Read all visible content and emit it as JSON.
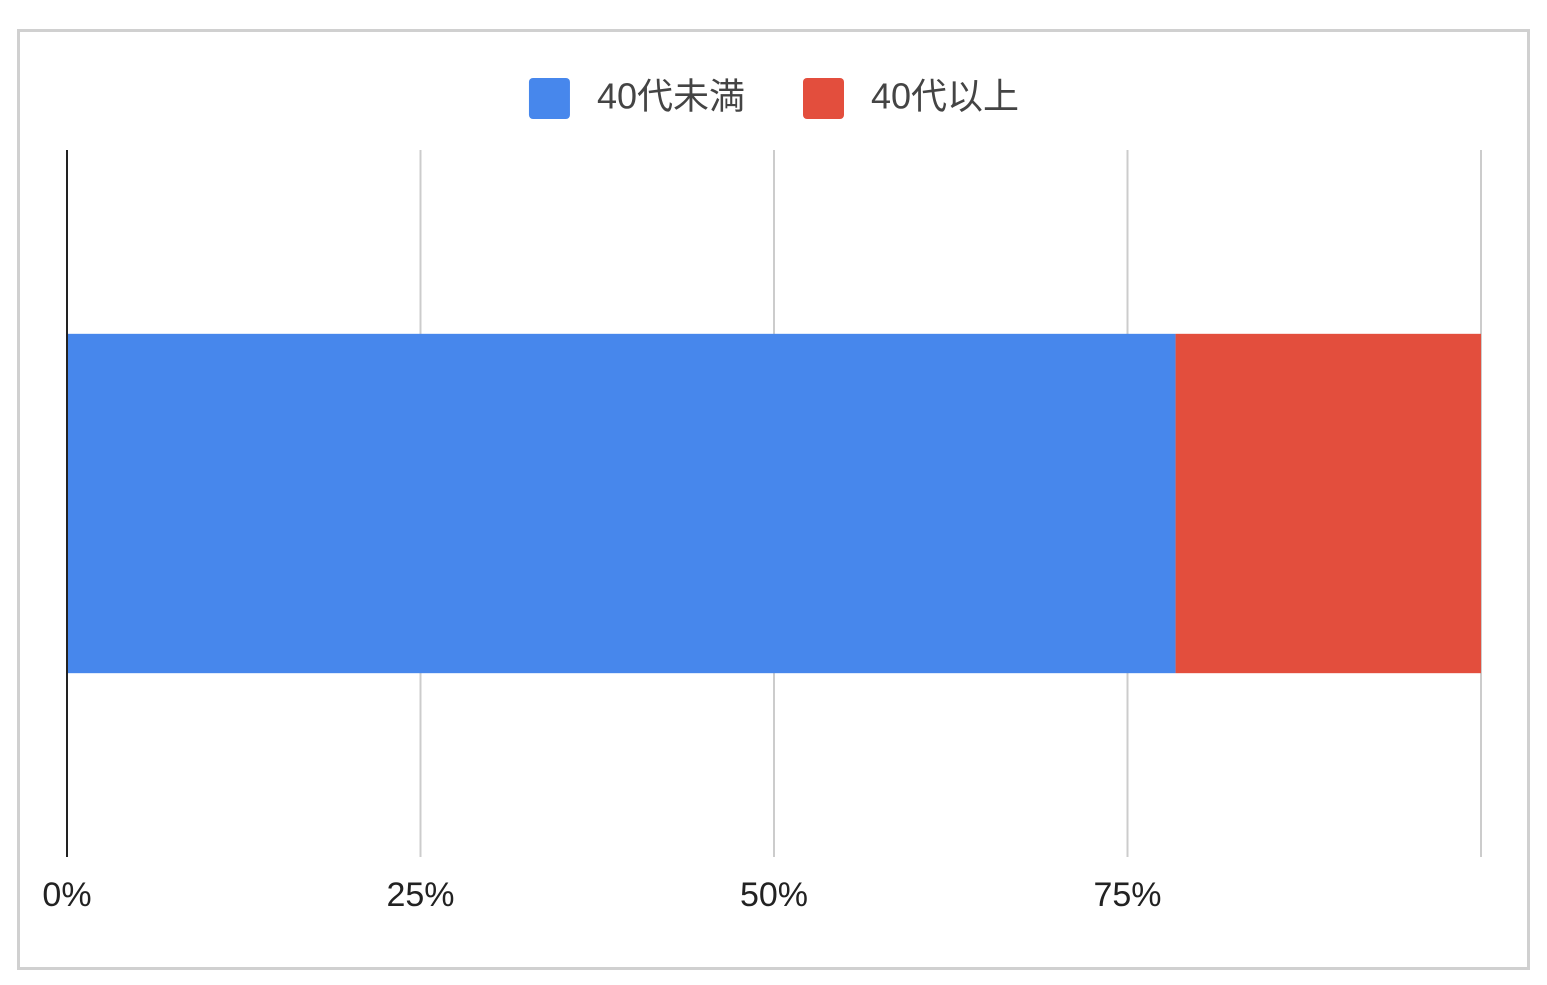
{
  "chart_data": {
    "type": "stacked-bar-horizontal",
    "categories": [
      null
    ],
    "series": [
      {
        "name": "40代未満",
        "color": "#4787ec",
        "values": [
          78.4
        ]
      },
      {
        "name": "40代以上",
        "color": "#e34e3d",
        "values": [
          21.6
        ]
      }
    ],
    "xlim": [
      0,
      100
    ],
    "xticks": [
      {
        "value": 0,
        "label": "0%"
      },
      {
        "value": 25,
        "label": "25%"
      },
      {
        "value": 50,
        "label": "50%"
      },
      {
        "value": 75,
        "label": "75%"
      }
    ],
    "grid": true,
    "legend": "top"
  }
}
